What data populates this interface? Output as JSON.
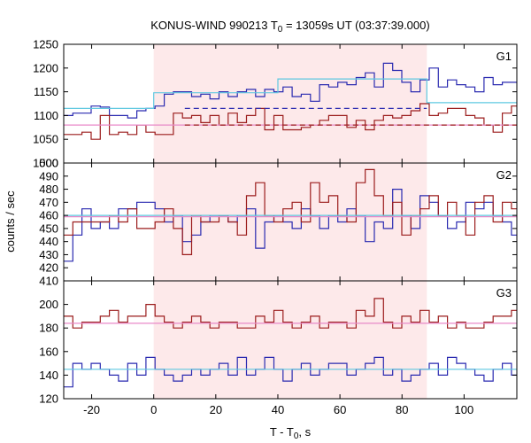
{
  "chart_data": {
    "type": "line",
    "title": {
      "prefix": "KONUS-WIND 990213 T",
      "sub": "0",
      "suffix": " = 13059s UT (03:37:39.000)"
    },
    "xlabel": {
      "prefix": "T - T",
      "sub": "0",
      "suffix": ", s"
    },
    "ylabel": "counts / sec",
    "xlim": [
      -29,
      117
    ],
    "xticks": [
      -20,
      0,
      20,
      40,
      60,
      80,
      100
    ],
    "shaded_interval": [
      0,
      88
    ],
    "colors": {
      "shade": "#fde9ea",
      "g_high": "#9b1c1c",
      "g_low": "#2a2ab0",
      "bg_high": "#e889c8",
      "bg_low": "#5fc8e0",
      "frame": "#000000"
    },
    "bin_start": -29,
    "bin_width": 2.944,
    "panels": [
      {
        "label": "G1",
        "ylim": [
          1000,
          1250
        ],
        "yticks": [
          1000,
          1050,
          1100,
          1150,
          1200,
          1250
        ],
        "series": [
          {
            "color": "#2a2ab0",
            "values": [
              1100,
              1105,
              1105,
              1120,
              1118,
              1100,
              1100,
              1095,
              1110,
              1115,
              1120,
              1145,
              1150,
              1150,
              1140,
              1145,
              1135,
              1150,
              1140,
              1150,
              1155,
              1140,
              1155,
              1150,
              1160,
              1140,
              1145,
              1130,
              1165,
              1160,
              1170,
              1165,
              1180,
              1190,
              1160,
              1210,
              1195,
              1170,
              1150,
              1175,
              1200,
              1160,
              1175,
              1165,
              1160,
              1150,
              1180,
              1165,
              1170,
              1170,
              1110,
              1130,
              1110,
              1110,
              1145,
              1100,
              1125,
              1165,
              1140,
              1130,
              1125,
              1160,
              1095,
              1110,
              1140,
              1110,
              1100,
              1100,
              1100,
              1095
            ]
          },
          {
            "color": "#9b1c1c",
            "values": [
              1060,
              1060,
              1065,
              1050,
              1100,
              1060,
              1065,
              1060,
              1080,
              1065,
              1060,
              1060,
              1105,
              1095,
              1100,
              1085,
              1100,
              1080,
              1105,
              1085,
              1100,
              1115,
              1070,
              1100,
              1070,
              1070,
              1075,
              1080,
              1090,
              1100,
              1100,
              1075,
              1090,
              1070,
              1090,
              1100,
              1095,
              1100,
              1110,
              1125,
              1100,
              1105,
              1115,
              1115,
              1100,
              1095,
              1080,
              1065,
              1105,
              1120,
              1120,
              1080,
              1100,
              1090,
              1080,
              1100,
              1100,
              1085,
              1100,
              1080,
              1100,
              1060,
              1110,
              1080,
              1110,
              1080,
              1090,
              1080,
              1075,
              1085
            ]
          },
          {
            "color": "#5fc8e0",
            "style": "solid",
            "values": [
              [
                -29,
                1115
              ],
              [
                0,
                1115
              ],
              [
                0,
                1148
              ],
              [
                40,
                1148
              ],
              [
                40,
                1177
              ],
              [
                88,
                1177
              ],
              [
                88,
                1127
              ],
              [
                117,
                1127
              ]
            ]
          },
          {
            "color": "#e889c8",
            "style": "solid",
            "values": [
              [
                -29,
                1080
              ],
              [
                117,
                1080
              ]
            ]
          },
          {
            "color": "#2a2ab0",
            "style": "dashed",
            "values": [
              [
                10,
                1115
              ],
              [
                88,
                1115
              ]
            ]
          },
          {
            "color": "#9b1c1c",
            "style": "dashed",
            "values": [
              [
                10,
                1080
              ],
              [
                117,
                1080
              ]
            ]
          }
        ]
      },
      {
        "label": "G2",
        "ylim": [
          410,
          500
        ],
        "yticks": [
          410,
          420,
          430,
          440,
          450,
          460,
          470,
          480,
          490,
          500
        ],
        "series": [
          {
            "color": "#2a2ab0",
            "values": [
              425,
              445,
              465,
              450,
              455,
              450,
              465,
              465,
              470,
              470,
              465,
              455,
              460,
              440,
              445,
              455,
              460,
              460,
              455,
              460,
              465,
              435,
              455,
              460,
              455,
              450,
              465,
              460,
              450,
              460,
              455,
              465,
              460,
              440,
              455,
              450,
              480,
              460,
              450,
              475,
              470,
              460,
              450,
              455,
              470,
              465,
              470,
              460,
              455,
              445,
              455,
              465,
              470,
              455,
              470,
              465,
              475,
              475,
              465,
              450,
              470,
              460,
              445,
              460,
              480,
              470,
              495,
              475,
              455,
              470
            ]
          },
          {
            "color": "#9b1c1c",
            "values": [
              445,
              455,
              455,
              455,
              455,
              460,
              455,
              465,
              450,
              450,
              455,
              465,
              450,
              430,
              460,
              455,
              455,
              460,
              455,
              445,
              475,
              485,
              460,
              455,
              465,
              470,
              455,
              485,
              470,
              475,
              460,
              455,
              485,
              495,
              475,
              460,
              470,
              445,
              460,
              465,
              475,
              460,
              470,
              460,
              445,
              470,
              475,
              455,
              470,
              465,
              460,
              470,
              450,
              460,
              455,
              475,
              465,
              450,
              455,
              460,
              465,
              455,
              460,
              470,
              460,
              470,
              455,
              465,
              470,
              455
            ]
          },
          {
            "color": "#5fc8e0",
            "style": "solid",
            "values": [
              [
                -29,
                460
              ],
              [
                117,
                460
              ]
            ]
          },
          {
            "color": "#e889c8",
            "style": "solid",
            "values": [
              [
                -29,
                459
              ],
              [
                117,
                459
              ]
            ]
          }
        ]
      },
      {
        "label": "G3",
        "ylim": [
          120,
          220
        ],
        "yticks": [
          120,
          140,
          160,
          180,
          200
        ],
        "series": [
          {
            "color": "#9b1c1c",
            "values": [
              190,
              180,
              185,
              185,
              190,
              195,
              185,
              190,
              190,
              200,
              190,
              185,
              180,
              185,
              190,
              185,
              180,
              185,
              185,
              180,
              180,
              190,
              185,
              195,
              185,
              180,
              185,
              190,
              180,
              185,
              185,
              180,
              195,
              190,
              205,
              185,
              180,
              190,
              185,
              195,
              185,
              190,
              180,
              185,
              180,
              180,
              185,
              190,
              190,
              195,
              195,
              195,
              205,
              180,
              185,
              180,
              185,
              180,
              190,
              185,
              195,
              200,
              185,
              190,
              180,
              185,
              190,
              190,
              195,
              200
            ]
          },
          {
            "color": "#2a2ab0",
            "values": [
              130,
              150,
              145,
              150,
              145,
              140,
              135,
              150,
              140,
              155,
              145,
              140,
              135,
              140,
              145,
              140,
              145,
              150,
              140,
              155,
              140,
              145,
              155,
              145,
              135,
              145,
              150,
              140,
              145,
              150,
              150,
              140,
              145,
              150,
              155,
              140,
              145,
              135,
              140,
              145,
              150,
              140,
              155,
              150,
              145,
              140,
              135,
              145,
              150,
              140,
              145,
              150,
              155,
              140,
              145,
              150,
              145,
              140,
              150,
              155,
              140,
              145,
              150,
              145,
              135,
              150,
              145,
              140,
              155,
              160
            ]
          },
          {
            "color": "#e889c8",
            "style": "solid",
            "values": [
              [
                -29,
                184
              ],
              [
                117,
                184
              ]
            ]
          },
          {
            "color": "#5fc8e0",
            "style": "solid",
            "values": [
              [
                -29,
                145
              ],
              [
                117,
                145
              ]
            ]
          }
        ]
      }
    ]
  }
}
